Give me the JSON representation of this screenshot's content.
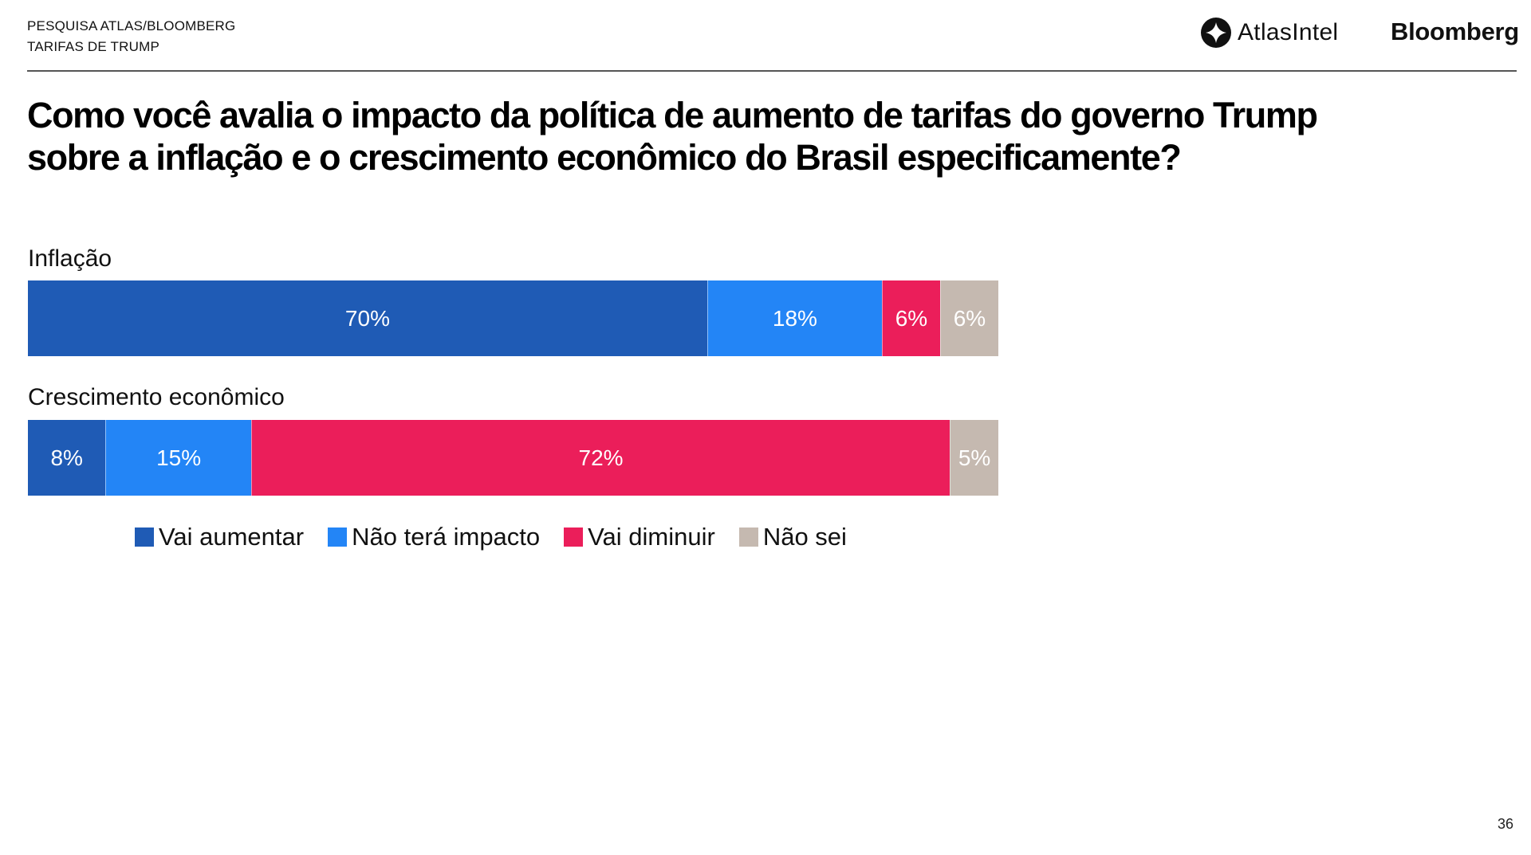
{
  "header": {
    "line1": "PESQUISA ATLAS/BLOOMBERG",
    "line2": "TARIFAS DE TRUMP",
    "logos": {
      "atlas": "AtlasIntel",
      "bloomberg": "Bloomberg"
    }
  },
  "title": {
    "line1": "Como você avalia o impacto da política de aumento de tarifas do governo Trump",
    "line2": "sobre a inflação e o crescimento econômico do Brasil especificamente?"
  },
  "page_number": "36",
  "colors": {
    "vai_aumentar": "#1f5bb5",
    "nao_tera_impacto": "#2385f6",
    "vai_diminuir": "#eb1e5a",
    "nao_sei": "#c5b9b0"
  },
  "chart_data": {
    "type": "bar",
    "orientation": "horizontal",
    "stacked": true,
    "title": "Como você avalia o impacto da política de aumento de tarifas do governo Trump sobre a inflação e o crescimento econômico do Brasil especificamente?",
    "categories": [
      "Inflação",
      "Crescimento econômico"
    ],
    "series": [
      {
        "name": "Vai aumentar",
        "color": "#1f5bb5",
        "values": [
          70,
          8
        ],
        "labels": [
          "70%",
          "8%"
        ]
      },
      {
        "name": "Não terá impacto",
        "color": "#2385f6",
        "values": [
          18,
          15
        ],
        "labels": [
          "18%",
          "15%"
        ]
      },
      {
        "name": "Vai diminuir",
        "color": "#eb1e5a",
        "values": [
          6,
          72
        ],
        "labels": [
          "6%",
          "72%"
        ]
      },
      {
        "name": "Não sei",
        "color": "#c5b9b0",
        "values": [
          6,
          5
        ],
        "labels": [
          "6%",
          "5%"
        ]
      }
    ],
    "xlim": [
      0,
      100
    ],
    "unit": "%",
    "grid": false,
    "legend": "bottom"
  }
}
